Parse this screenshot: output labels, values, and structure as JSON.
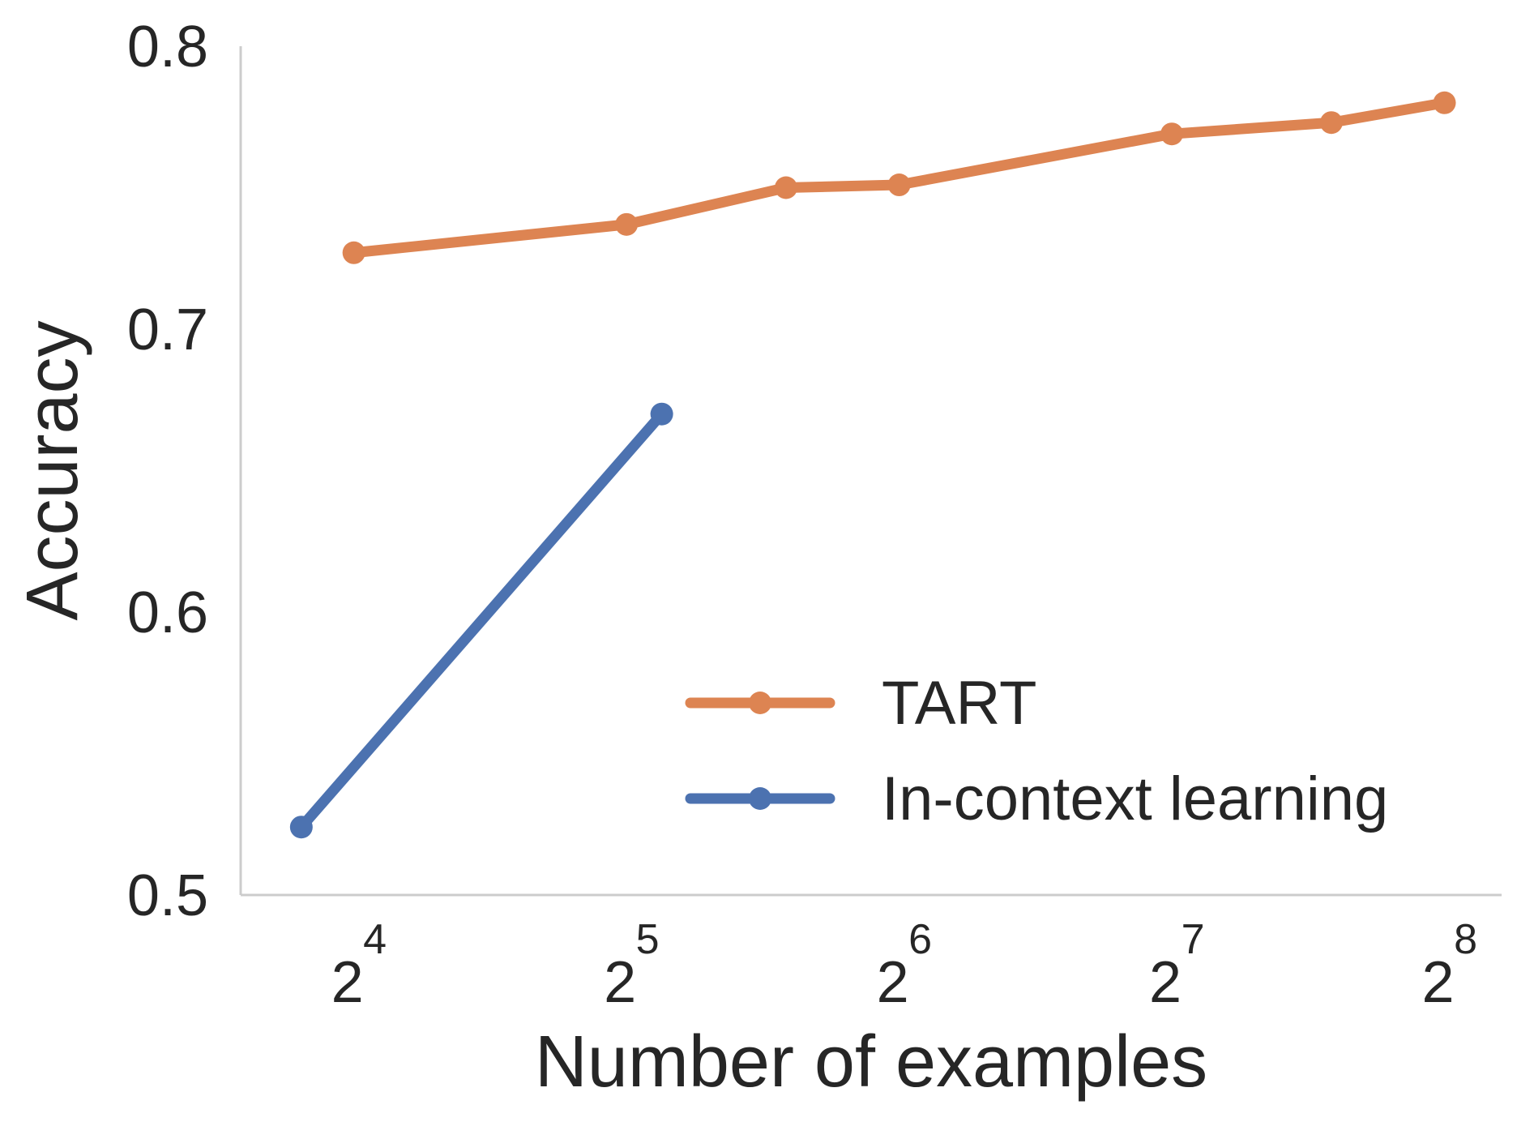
{
  "chart_data": {
    "type": "line",
    "xlabel": "Number of examples",
    "ylabel": "Accuracy",
    "x_scale": "log2",
    "xlim": [
      12,
      296
    ],
    "ylim": [
      0.5,
      0.8
    ],
    "x_ticks": [
      {
        "value": 16,
        "base": "2",
        "exp": "4"
      },
      {
        "value": 32,
        "base": "2",
        "exp": "5"
      },
      {
        "value": 64,
        "base": "2",
        "exp": "6"
      },
      {
        "value": 128,
        "base": "2",
        "exp": "7"
      },
      {
        "value": 256,
        "base": "2",
        "exp": "8"
      }
    ],
    "y_ticks": [
      {
        "value": 0.5,
        "label": "0.5"
      },
      {
        "value": 0.6,
        "label": "0.6"
      },
      {
        "value": 0.7,
        "label": "0.7"
      },
      {
        "value": 0.8,
        "label": "0.8"
      }
    ],
    "grid": false,
    "legend_position": "lower-right",
    "series": [
      {
        "name": "TART",
        "color": "#dd8452",
        "x": [
          16,
          32,
          48,
          64,
          128,
          192,
          256
        ],
        "y": [
          0.727,
          0.737,
          0.75,
          0.751,
          0.769,
          0.773,
          0.78
        ]
      },
      {
        "name": "In-context learning",
        "color": "#4c72b0",
        "x": [
          14,
          35
        ],
        "y": [
          0.524,
          0.67
        ]
      }
    ]
  }
}
